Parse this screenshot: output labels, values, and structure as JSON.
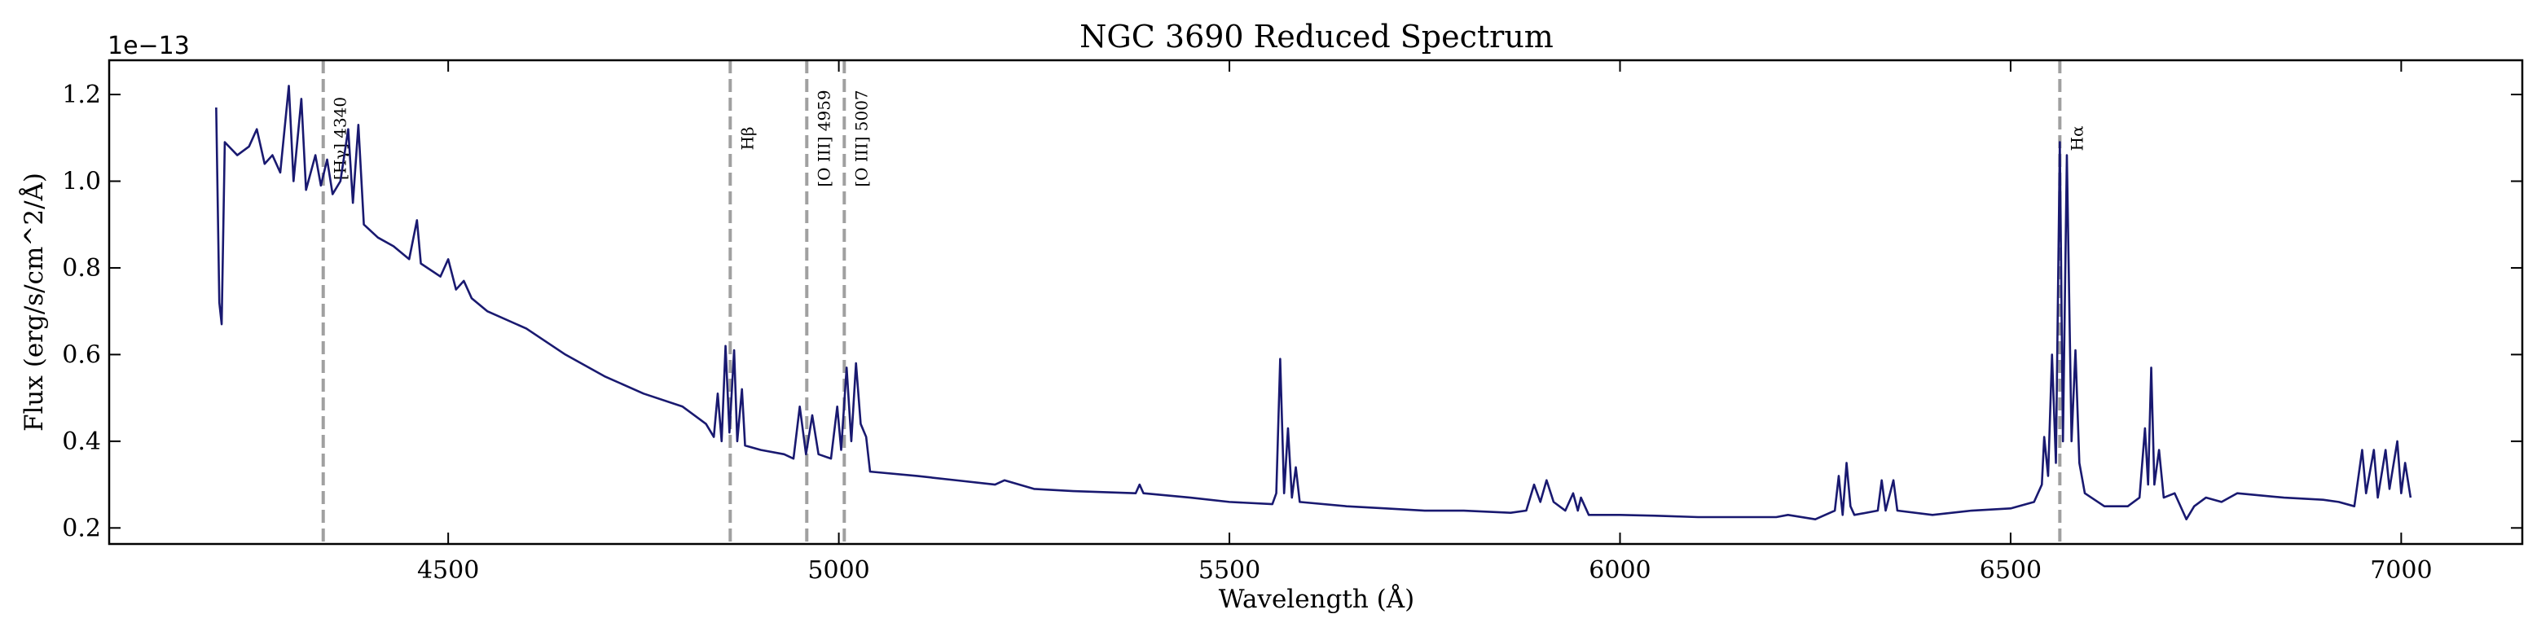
{
  "chart_data": {
    "type": "line",
    "title": "NGC 3690 Reduced Spectrum",
    "xlabel": "Wavelength (Å)",
    "ylabel": "Flux (erg/s/cm^2/Å)",
    "offset_text": "1e−13",
    "color": "#191970",
    "xlim": [
      4066,
      7155
    ],
    "ylim": [
      0.163,
      1.279
    ],
    "xticks": [
      4500,
      5000,
      5500,
      6000,
      6500,
      7000
    ],
    "yticks": [
      0.2,
      0.4,
      0.6,
      0.8,
      {
        "value": 1,
        "label": "1.0"
      },
      1.2
    ],
    "vlines": [
      {
        "x": 4340,
        "label": "[Hγ] 4340"
      },
      {
        "x": 4861,
        "label": "Hβ"
      },
      {
        "x": 4959,
        "label": "[O III] 4959"
      },
      {
        "x": 5007,
        "label": "[O III] 5007"
      },
      {
        "x": 6563,
        "label": "Hα"
      }
    ],
    "x": [
      4203,
      4207,
      4210,
      4214,
      4230,
      4245,
      4255,
      4265,
      4275,
      4285,
      4296,
      4302,
      4312,
      4318,
      4330,
      4337,
      4345,
      4352,
      4362,
      4372,
      4378,
      4385,
      4392,
      4410,
      4430,
      4450,
      4460,
      4465,
      4490,
      4500,
      4510,
      4520,
      4530,
      4550,
      4600,
      4650,
      4700,
      4750,
      4800,
      4830,
      4840,
      4845,
      4850,
      4855,
      4860,
      4866,
      4870,
      4876,
      4880,
      4900,
      4930,
      4942,
      4950,
      4958,
      4966,
      4974,
      4990,
      4998,
      5003,
      5010,
      5016,
      5022,
      5028,
      5035,
      5040,
      5100,
      5150,
      5200,
      5212,
      5250,
      5300,
      5380,
      5385,
      5390,
      5450,
      5500,
      5555,
      5560,
      5565,
      5570,
      5575,
      5580,
      5585,
      5590,
      5650,
      5700,
      5750,
      5800,
      5860,
      5880,
      5890,
      5898,
      5906,
      5915,
      5930,
      5940,
      5946,
      5950,
      5960,
      6000,
      6050,
      6100,
      6150,
      6200,
      6215,
      6250,
      6275,
      6280,
      6285,
      6290,
      6295,
      6300,
      6330,
      6335,
      6340,
      6350,
      6355,
      6400,
      6450,
      6500,
      6530,
      6540,
      6543,
      6548,
      6553,
      6558,
      6563,
      6567,
      6572,
      6578,
      6583,
      6588,
      6595,
      6620,
      6650,
      6665,
      6672,
      6676,
      6680,
      6684,
      6690,
      6696,
      6710,
      6725,
      6735,
      6750,
      6770,
      6790,
      6850,
      6900,
      6920,
      6940,
      6950,
      6955,
      6965,
      6970,
      6980,
      6985,
      6995,
      7000,
      7005,
      7012
    ],
    "values": [
      1.17,
      0.72,
      0.67,
      1.09,
      1.06,
      1.08,
      1.12,
      1.04,
      1.06,
      1.02,
      1.22,
      1.0,
      1.19,
      0.98,
      1.06,
      0.99,
      1.05,
      0.97,
      1.0,
      1.12,
      0.95,
      1.13,
      0.9,
      0.87,
      0.85,
      0.82,
      0.91,
      0.81,
      0.78,
      0.82,
      0.75,
      0.77,
      0.73,
      0.7,
      0.66,
      0.6,
      0.55,
      0.51,
      0.48,
      0.44,
      0.41,
      0.51,
      0.4,
      0.62,
      0.42,
      0.61,
      0.4,
      0.52,
      0.39,
      0.38,
      0.37,
      0.36,
      0.48,
      0.37,
      0.46,
      0.37,
      0.36,
      0.48,
      0.38,
      0.57,
      0.4,
      0.58,
      0.44,
      0.41,
      0.33,
      0.32,
      0.31,
      0.3,
      0.31,
      0.29,
      0.285,
      0.28,
      0.3,
      0.28,
      0.27,
      0.26,
      0.255,
      0.28,
      0.59,
      0.28,
      0.43,
      0.27,
      0.34,
      0.26,
      0.25,
      0.245,
      0.24,
      0.24,
      0.235,
      0.24,
      0.3,
      0.26,
      0.31,
      0.26,
      0.24,
      0.28,
      0.24,
      0.27,
      0.23,
      0.23,
      0.228,
      0.225,
      0.225,
      0.225,
      0.23,
      0.22,
      0.24,
      0.32,
      0.23,
      0.35,
      0.25,
      0.23,
      0.24,
      0.31,
      0.24,
      0.31,
      0.24,
      0.23,
      0.24,
      0.245,
      0.26,
      0.3,
      0.41,
      0.32,
      0.6,
      0.35,
      1.09,
      0.4,
      1.06,
      0.4,
      0.61,
      0.35,
      0.28,
      0.25,
      0.25,
      0.27,
      0.43,
      0.3,
      0.57,
      0.3,
      0.38,
      0.27,
      0.28,
      0.22,
      0.25,
      0.27,
      0.26,
      0.28,
      0.27,
      0.265,
      0.26,
      0.25,
      0.38,
      0.28,
      0.38,
      0.27,
      0.38,
      0.29,
      0.4,
      0.28,
      0.35,
      0.27
    ]
  }
}
